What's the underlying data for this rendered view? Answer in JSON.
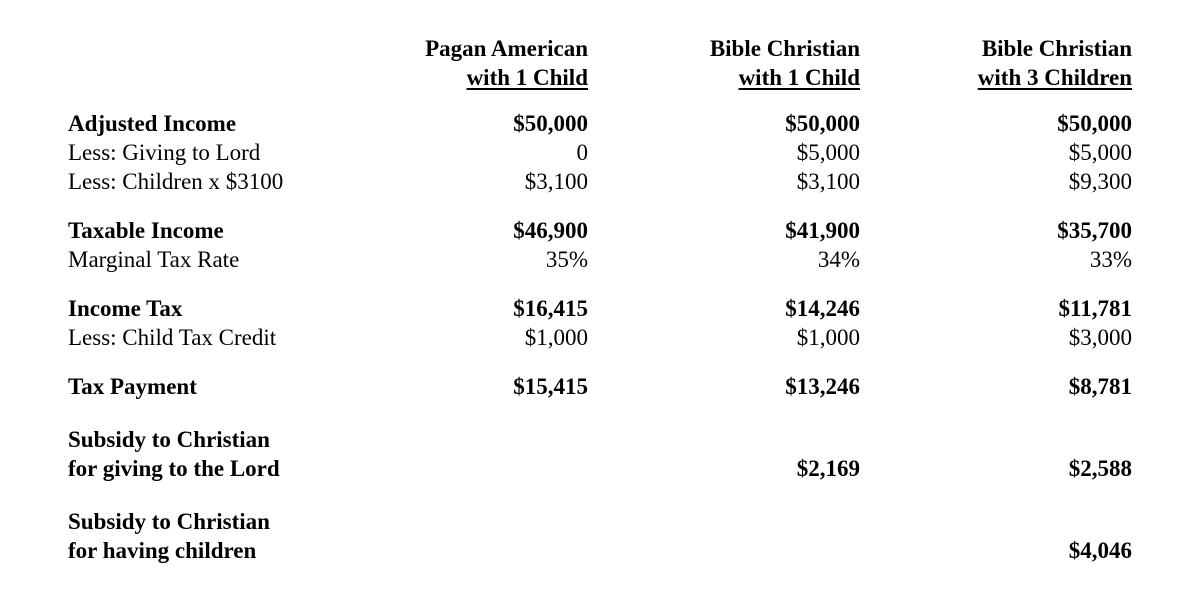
{
  "columns": [
    {
      "line1": "Pagan American",
      "line2": "with 1 Child"
    },
    {
      "line1": "Bible Christian",
      "line2": "with 1 Child"
    },
    {
      "line1": "Bible Christian",
      "line2": "with 3 Children"
    }
  ],
  "rows": [
    {
      "label": "Adjusted Income",
      "values": [
        "$50,000",
        "$50,000",
        "$50,000"
      ]
    },
    {
      "label": "Less: Giving to Lord",
      "values": [
        "0",
        "$5,000",
        "$5,000"
      ]
    },
    {
      "label": "Less: Children x $3100",
      "values": [
        "$3,100",
        "$3,100",
        "$9,300"
      ]
    },
    {
      "label": "Taxable Income",
      "values": [
        "$46,900",
        "$41,900",
        "$35,700"
      ]
    },
    {
      "label": "Marginal Tax Rate",
      "values": [
        "35%",
        "34%",
        "33%"
      ]
    },
    {
      "label": "Income Tax",
      "values": [
        "$16,415",
        "$14,246",
        "$11,781"
      ]
    },
    {
      "label": "Less: Child Tax Credit",
      "values": [
        "$1,000",
        "$1,000",
        "$3,000"
      ]
    },
    {
      "label": "Tax Payment",
      "values": [
        "$15,415",
        "$13,246",
        "$8,781"
      ]
    },
    {
      "label_line1": "Subsidy to Christian",
      "label_line2": "for giving to the Lord",
      "values": [
        "",
        "$2,169",
        "$2,588"
      ]
    },
    {
      "label_line1": "Subsidy to Christian",
      "label_line2": "for having children",
      "values": [
        "",
        "",
        "$4,046"
      ]
    }
  ]
}
